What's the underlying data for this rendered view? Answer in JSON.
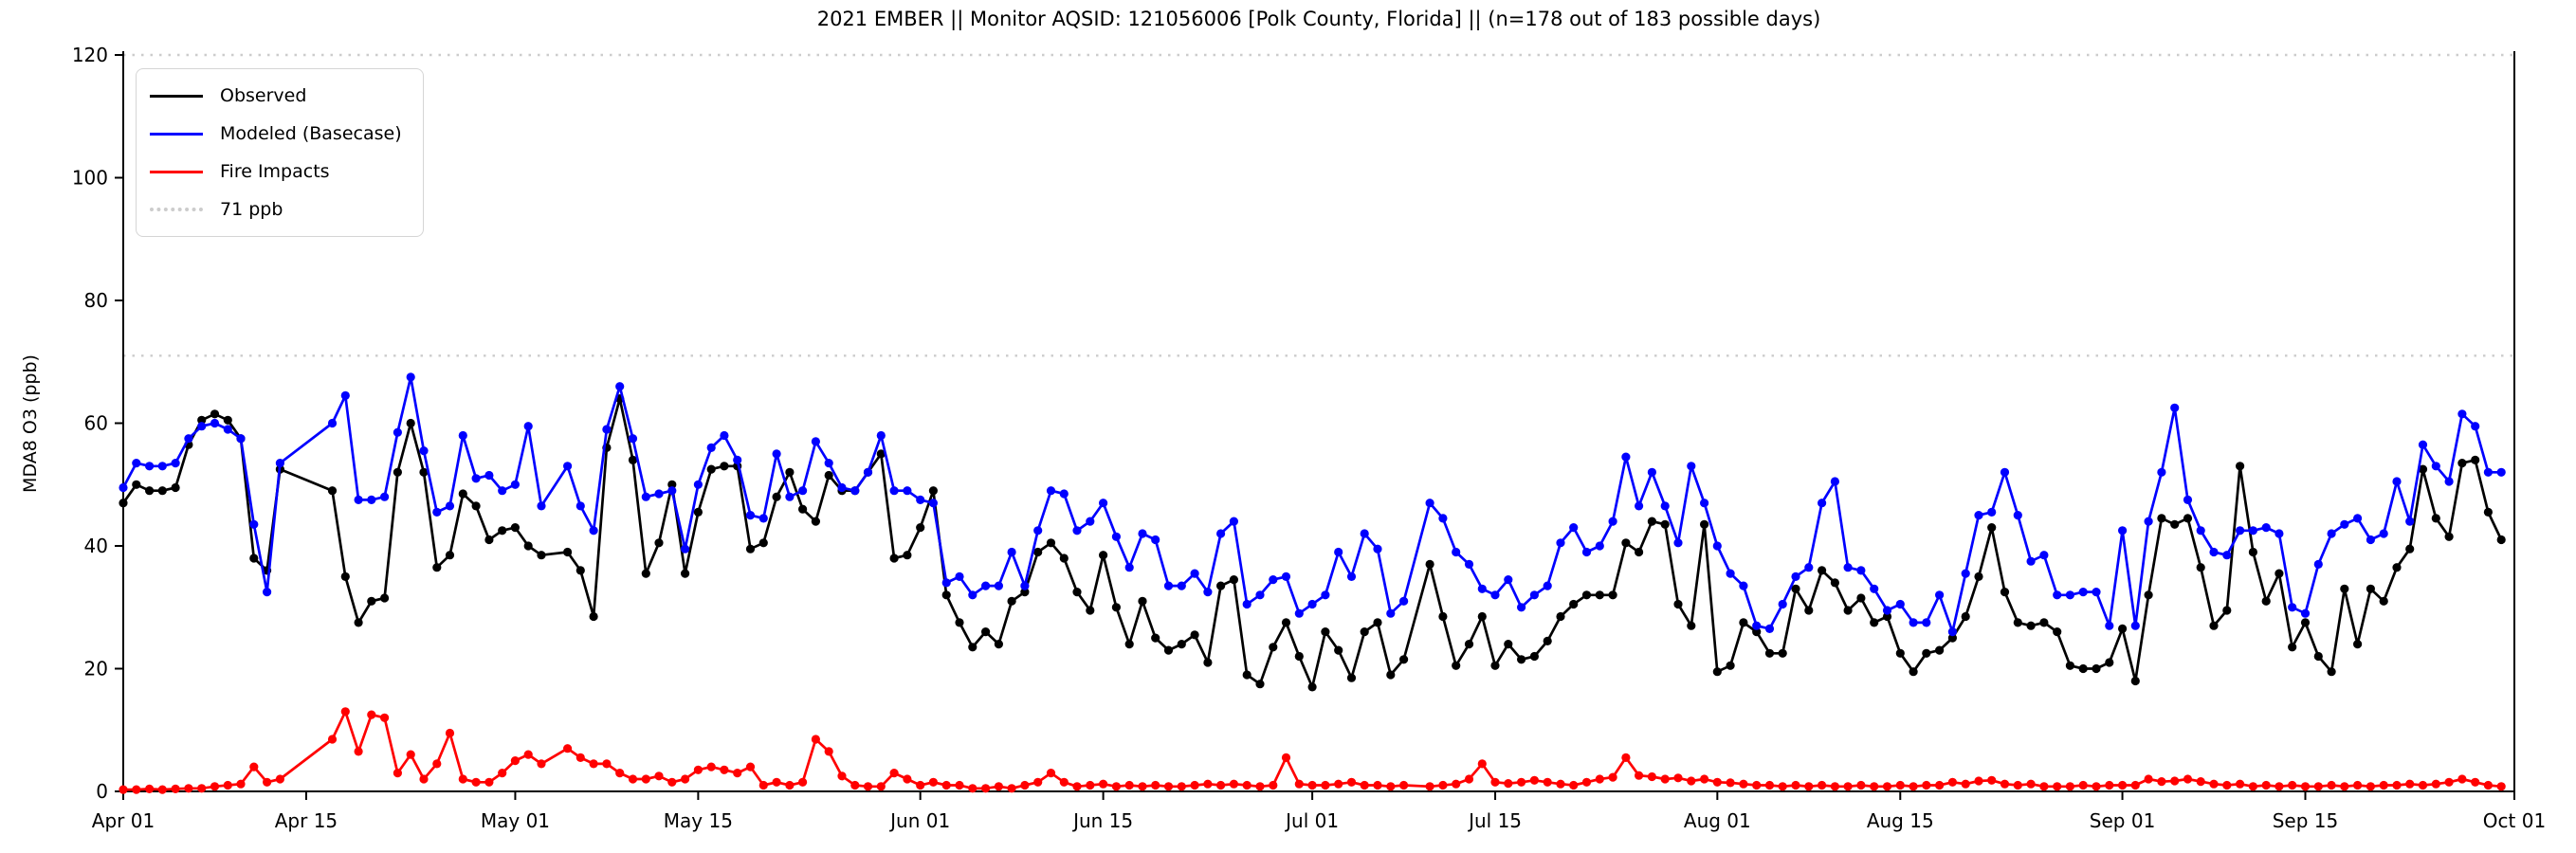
{
  "title": "2021 EMBER || Monitor AQSID: 121056006 [Polk County, Florida] || (n=178 out of 183 possible days)",
  "axes": {
    "y_label": "MDA8 O3 (ppb)",
    "y_ticks": [
      0,
      20,
      40,
      60,
      80,
      100,
      120
    ],
    "y_min": 0,
    "y_max": 120,
    "x_tick_labels": [
      "Apr 01",
      "Apr 15",
      "May 01",
      "May 15",
      "Jun 01",
      "Jun 15",
      "Jul 01",
      "Jul 15",
      "Aug 01",
      "Aug 15",
      "Sep 01",
      "Sep 15",
      "Oct 01"
    ],
    "x_tick_days": [
      0,
      14,
      30,
      44,
      61,
      75,
      91,
      105,
      122,
      136,
      153,
      167,
      183
    ]
  },
  "legend": {
    "items": [
      {
        "label": "Observed",
        "color": "#000000",
        "style": "solid"
      },
      {
        "label": "Modeled (Basecase)",
        "color": "#0000ff",
        "style": "solid"
      },
      {
        "label": "Fire Impacts",
        "color": "#ff0000",
        "style": "solid"
      },
      {
        "label": "71 ppb",
        "color": "#cccccc",
        "style": "dotted"
      }
    ]
  },
  "chart_data": {
    "type": "line",
    "title": "2021 EMBER || Monitor AQSID: 121056006 [Polk County, Florida] || (n=178 out of 183 possible days)",
    "xlabel": "",
    "ylabel": "MDA8 O3 (ppb)",
    "ylim": [
      0,
      120
    ],
    "x_start_date": "2021-04-01",
    "x_end_date": "2021-10-01",
    "n_days": 183,
    "n_plotted_days": 178,
    "grid": false,
    "legend_position": "upper left",
    "reference_lines": [
      {
        "value": 71,
        "label": "71 ppb",
        "color": "#cccccc",
        "style": "dotted"
      },
      {
        "value": 120,
        "label": "",
        "color": "#cccccc",
        "style": "dotted"
      }
    ],
    "series": [
      {
        "name": "Observed",
        "color": "#000000",
        "marker": "circle",
        "values": [
          47,
          50,
          49,
          49,
          49.5,
          56.5,
          60.5,
          61.5,
          60.5,
          57.5,
          38,
          36,
          52.5,
          null,
          null,
          null,
          49,
          35,
          27.5,
          31,
          31.5,
          52,
          60,
          52,
          36.5,
          38.5,
          48.5,
          46.5,
          41,
          42.5,
          43,
          40,
          38.5,
          null,
          39,
          36,
          28.5,
          56,
          64,
          54,
          35.5,
          40.5,
          50,
          35.5,
          45.5,
          52.5,
          53,
          53,
          39.5,
          40.5,
          48,
          52,
          46,
          44,
          51.5,
          49,
          49,
          52,
          55,
          38,
          38.5,
          43,
          49,
          32,
          27.5,
          23.5,
          26,
          24,
          31,
          32.5,
          39,
          40.5,
          38,
          32.5,
          29.5,
          38.5,
          30,
          24,
          31,
          25,
          23,
          24,
          25.5,
          21,
          33.5,
          34.5,
          19,
          17.5,
          23.5,
          27.5,
          22,
          17,
          26,
          23,
          18.5,
          26,
          27.5,
          19,
          21.5,
          null,
          37,
          28.5,
          20.5,
          24,
          28.5,
          20.5,
          24,
          21.5,
          22,
          24.5,
          28.5,
          30.5,
          32,
          32,
          32,
          40.5,
          39,
          44,
          43.5,
          30.5,
          27,
          43.5,
          19.5,
          20.5,
          27.5,
          26,
          22.5,
          22.5,
          33,
          29.5,
          36,
          34,
          29.5,
          31.5,
          27.5,
          28.5,
          22.5,
          19.5,
          22.5,
          23,
          25,
          28.5,
          35,
          43,
          32.5,
          27.5,
          27,
          27.5,
          26,
          20.5,
          20,
          20,
          21,
          26.5,
          18,
          32,
          44.5,
          43.5,
          44.5,
          36.5,
          27,
          29.5,
          53,
          39,
          31,
          35.5,
          23.5,
          27.5,
          22,
          19.5,
          33,
          24,
          33,
          31,
          36.5,
          39.5,
          52.5,
          44.5,
          41.5,
          53.5,
          54,
          45.5,
          41
        ]
      },
      {
        "name": "Modeled (Basecase)",
        "color": "#0000ff",
        "marker": "circle",
        "values": [
          49.5,
          53.5,
          53,
          53,
          53.5,
          57.5,
          59.5,
          60,
          59,
          57.5,
          43.5,
          32.5,
          53.5,
          null,
          null,
          null,
          60,
          64.5,
          47.5,
          47.5,
          48,
          58.5,
          67.5,
          55.5,
          45.5,
          46.5,
          58,
          51,
          51.5,
          49,
          50,
          59.5,
          46.5,
          null,
          53,
          46.5,
          42.5,
          59,
          66,
          57.5,
          48,
          48.5,
          49,
          39.5,
          50,
          56,
          58,
          54,
          45,
          44.5,
          55,
          48,
          49,
          57,
          53.5,
          49.5,
          49,
          52,
          58,
          49,
          49,
          47.5,
          47,
          34,
          35,
          32,
          33.5,
          33.5,
          39,
          33.5,
          42.5,
          49,
          48.5,
          42.5,
          44,
          47,
          41.5,
          36.5,
          42,
          41,
          33.5,
          33.5,
          35.5,
          32.5,
          42,
          44,
          30.5,
          32,
          34.5,
          35,
          29,
          30.5,
          32,
          39,
          35,
          42,
          39.5,
          29,
          31,
          null,
          47,
          44.5,
          39,
          37,
          33,
          32,
          34.5,
          30,
          32,
          33.5,
          40.5,
          43,
          39,
          40,
          44,
          54.5,
          46.5,
          52,
          46.5,
          40.5,
          53,
          47,
          40,
          35.5,
          33.5,
          27,
          26.5,
          30.5,
          35,
          36.5,
          47,
          50.5,
          36.5,
          36,
          33,
          29.5,
          30.5,
          27.5,
          27.5,
          32,
          26,
          35.5,
          45,
          45.5,
          52,
          45,
          37.5,
          38.5,
          32,
          32,
          32.5,
          32.5,
          27,
          42.5,
          27,
          44,
          52,
          62.5,
          47.5,
          42.5,
          39,
          38.5,
          42.5,
          42.5,
          43,
          42,
          30,
          29,
          37,
          42,
          43.5,
          44.5,
          41,
          42,
          50.5,
          44,
          56.5,
          53,
          50.5,
          61.5,
          59.5,
          52,
          52
        ]
      },
      {
        "name": "Fire Impacts",
        "color": "#ff0000",
        "marker": "circle",
        "values": [
          0.3,
          0.3,
          0.4,
          0.3,
          0.4,
          0.5,
          0.5,
          0.8,
          1,
          1.2,
          4,
          1.5,
          2,
          null,
          null,
          null,
          8.5,
          13,
          6.5,
          12.5,
          12,
          3,
          6,
          2,
          4.5,
          9.5,
          2,
          1.5,
          1.5,
          3,
          5,
          6,
          4.5,
          null,
          7,
          5.5,
          4.5,
          4.5,
          3,
          2,
          2,
          2.5,
          1.5,
          2,
          3.5,
          4,
          3.5,
          3,
          4,
          1,
          1.5,
          1,
          1.5,
          8.5,
          6.5,
          2.5,
          1,
          0.8,
          0.8,
          3,
          2,
          1,
          1.5,
          1,
          1,
          0.5,
          0.5,
          0.8,
          0.5,
          1,
          1.5,
          3,
          1.5,
          0.8,
          1,
          1.2,
          0.8,
          1,
          0.8,
          1,
          0.8,
          0.8,
          1,
          1.2,
          1,
          1.2,
          1,
          0.8,
          1,
          5.5,
          1.2,
          1,
          1,
          1.2,
          1.5,
          1,
          1,
          0.8,
          1,
          null,
          0.8,
          1,
          1.2,
          2,
          4.5,
          1.5,
          1.3,
          1.5,
          1.8,
          1.5,
          1.2,
          1,
          1.5,
          2,
          2.3,
          5.5,
          2.6,
          2.4,
          2,
          2.2,
          1.7,
          2,
          1.5,
          1.4,
          1.2,
          1,
          1,
          0.8,
          1,
          0.8,
          1,
          0.8,
          0.8,
          1,
          0.8,
          0.8,
          1,
          0.8,
          1,
          1,
          1.5,
          1.2,
          1.7,
          1.8,
          1.2,
          1,
          1.2,
          0.8,
          0.8,
          0.8,
          1,
          0.8,
          1,
          1,
          1,
          2,
          1.6,
          1.7,
          2,
          1.6,
          1.2,
          1,
          1.2,
          0.8,
          1,
          0.8,
          1,
          0.8,
          0.8,
          1,
          0.8,
          1,
          0.8,
          1,
          1,
          1.2,
          1,
          1.2,
          1.5,
          2,
          1.5,
          1,
          0.8
        ]
      }
    ]
  }
}
